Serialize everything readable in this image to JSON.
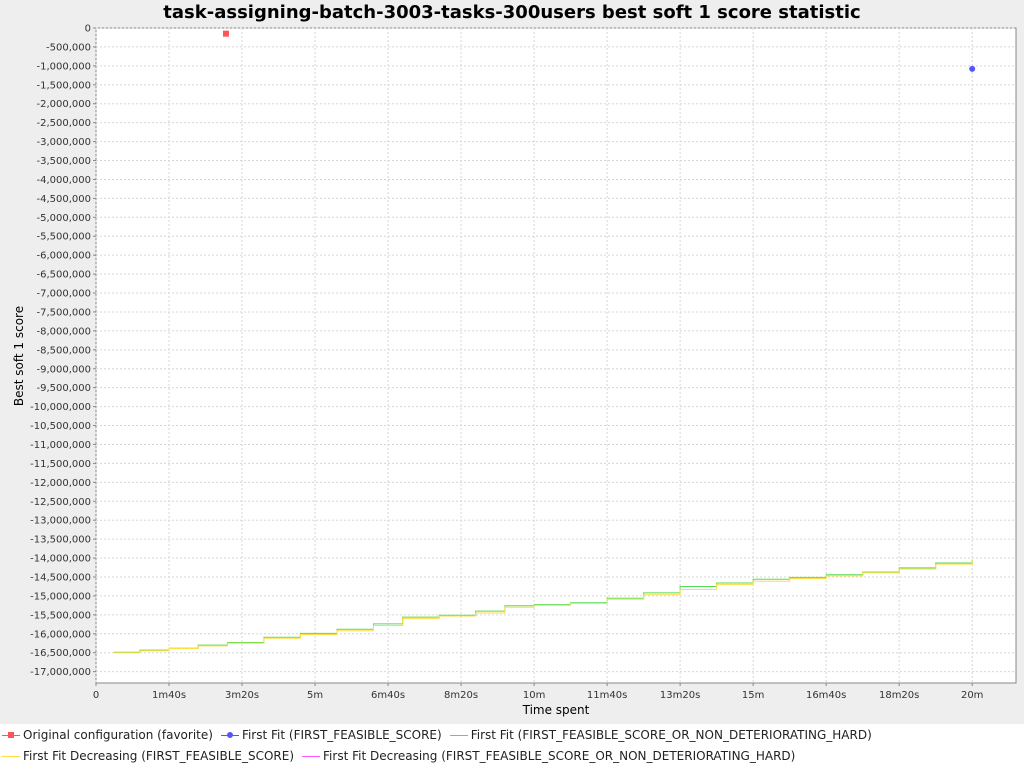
{
  "chart_data": {
    "type": "line",
    "title": "task-assigning-batch-3003-tasks-300users best soft 1 score statistic",
    "xlabel": "Time spent",
    "ylabel": "Best soft 1 score",
    "xlim": [
      0,
      1260
    ],
    "ylim": [
      -17300000,
      0
    ],
    "x_ticks": [
      {
        "value": 0,
        "label": "0"
      },
      {
        "value": 100,
        "label": "1m40s"
      },
      {
        "value": 200,
        "label": "3m20s"
      },
      {
        "value": 300,
        "label": "5m"
      },
      {
        "value": 400,
        "label": "6m40s"
      },
      {
        "value": 500,
        "label": "8m20s"
      },
      {
        "value": 600,
        "label": "10m"
      },
      {
        "value": 700,
        "label": "11m40s"
      },
      {
        "value": 800,
        "label": "13m20s"
      },
      {
        "value": 900,
        "label": "15m"
      },
      {
        "value": 1000,
        "label": "16m40s"
      },
      {
        "value": 1100,
        "label": "18m20s"
      },
      {
        "value": 1200,
        "label": "20m"
      }
    ],
    "y_tick_labels": [
      "0",
      "-500,000",
      "-1,000,000",
      "-1,500,000",
      "-2,000,000",
      "-2,500,000",
      "-3,000,000",
      "-3,500,000",
      "-4,000,000",
      "-4,500,000",
      "-5,000,000",
      "-5,500,000",
      "-6,000,000",
      "-6,500,000",
      "-7,000,000",
      "-7,500,000",
      "-8,000,000",
      "-8,500,000",
      "-9,000,000",
      "-9,500,000",
      "-10,000,000",
      "-10,500,000",
      "-11,000,000",
      "-11,500,000",
      "-12,000,000",
      "-12,500,000",
      "-13,000,000",
      "-13,500,000",
      "-14,000,000",
      "-14,500,000",
      "-15,000,000",
      "-15,500,000",
      "-16,000,000",
      "-16,500,000",
      "-17,000,000"
    ],
    "grid": true,
    "legend_position": "bottom",
    "series": [
      {
        "name": "Original configuration (favorite)",
        "color": "#ff5555",
        "marker": "square",
        "line": false,
        "points": [
          [
            178,
            -150000
          ]
        ]
      },
      {
        "name": "First Fit (FIRST_FEASIBLE_SCORE)",
        "color": "#5555ff",
        "marker": "circle",
        "line": false,
        "points": [
          [
            1200,
            -1080000
          ]
        ]
      },
      {
        "name": "First Fit (FIRST_FEASIBLE_SCORE_OR_NON_DETERIORATING_HARD)",
        "color": "#55dd55",
        "marker": "none",
        "line": true,
        "points": [
          [
            24,
            -16490000
          ],
          [
            60,
            -16430000
          ],
          [
            100,
            -16380000
          ],
          [
            140,
            -16300000
          ],
          [
            180,
            -16230000
          ],
          [
            230,
            -16090000
          ],
          [
            280,
            -15990000
          ],
          [
            330,
            -15880000
          ],
          [
            380,
            -15740000
          ],
          [
            420,
            -15560000
          ],
          [
            470,
            -15510000
          ],
          [
            520,
            -15400000
          ],
          [
            560,
            -15260000
          ],
          [
            600,
            -15230000
          ],
          [
            650,
            -15180000
          ],
          [
            700,
            -15060000
          ],
          [
            750,
            -14920000
          ],
          [
            800,
            -14750000
          ],
          [
            850,
            -14660000
          ],
          [
            900,
            -14560000
          ],
          [
            950,
            -14510000
          ],
          [
            1000,
            -14440000
          ],
          [
            1050,
            -14370000
          ],
          [
            1100,
            -14260000
          ],
          [
            1150,
            -14130000
          ],
          [
            1200,
            -14040000
          ]
        ]
      },
      {
        "name": "First Fit Decreasing (FIRST_FEASIBLE_SCORE)",
        "color": "#ffdd44",
        "marker": "none",
        "line": true,
        "points": [
          [
            24,
            -16500000
          ],
          [
            60,
            -16450000
          ],
          [
            100,
            -16390000
          ],
          [
            140,
            -16320000
          ],
          [
            180,
            -16250000
          ],
          [
            230,
            -16120000
          ],
          [
            280,
            -16020000
          ],
          [
            330,
            -15920000
          ],
          [
            380,
            -15780000
          ],
          [
            420,
            -15600000
          ],
          [
            470,
            -15530000
          ],
          [
            520,
            -15450000
          ],
          [
            560,
            -15300000
          ],
          [
            600,
            -15250000
          ],
          [
            650,
            -15200000
          ],
          [
            700,
            -15090000
          ],
          [
            750,
            -14970000
          ],
          [
            800,
            -14830000
          ],
          [
            850,
            -14700000
          ],
          [
            900,
            -14610000
          ],
          [
            950,
            -14540000
          ],
          [
            1000,
            -14470000
          ],
          [
            1050,
            -14390000
          ],
          [
            1100,
            -14290000
          ],
          [
            1150,
            -14160000
          ],
          [
            1200,
            -14060000
          ]
        ]
      },
      {
        "name": "First Fit Decreasing (FIRST_FEASIBLE_SCORE_OR_NON_DETERIORATING_HARD)",
        "color": "#ff55ff",
        "marker": "none",
        "line": true,
        "points": []
      }
    ]
  }
}
